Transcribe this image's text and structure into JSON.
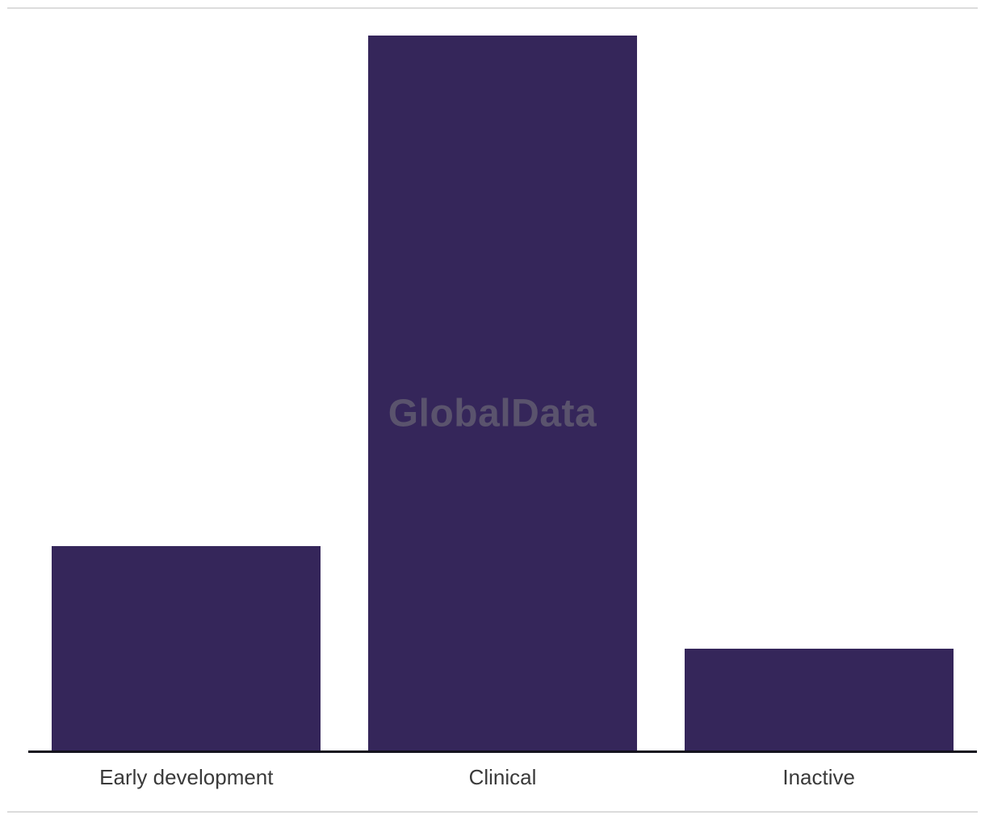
{
  "watermark": {
    "text": "GlobalData"
  },
  "chart_data": {
    "type": "bar",
    "categories": [
      "Early development",
      "Clinical",
      "Inactive"
    ],
    "values": [
      2,
      7,
      1
    ],
    "title": "",
    "xlabel": "",
    "ylabel": "",
    "ylim": [
      0,
      7
    ],
    "grid": false,
    "legend_position": "none"
  },
  "colors": {
    "bar": "#35265a",
    "axis_line": "#14131e",
    "divider": "#dcdcdc",
    "label_text": "#3a3a3a",
    "watermark_text": "rgba(128,128,128,0.5)",
    "background": "#ffffff"
  }
}
